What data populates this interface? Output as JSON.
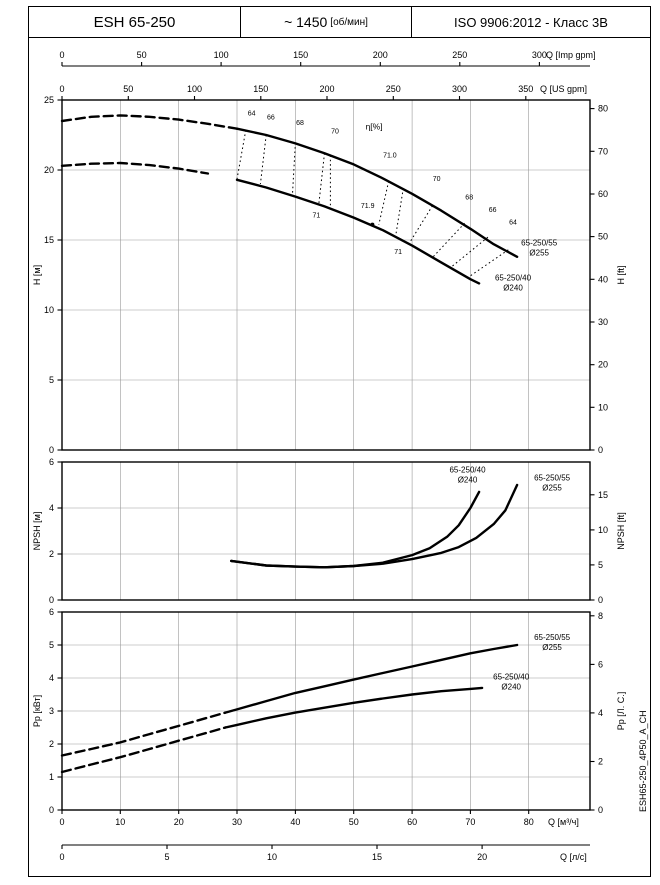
{
  "header": {
    "model": "ESH 65-250",
    "speed": "~ 1450",
    "speed_unit": "[об/мин]",
    "standard": "ISO 9906:2012 - Класс 3В"
  },
  "side_label": "ESH65-250_4P50_A_CH",
  "chart_data": {
    "type": "line",
    "flow_unit": "м³/ч",
    "flow_axes": [
      {
        "id": "imp-gpm",
        "label": "Q [Imp gpm]",
        "ticks": [
          0,
          50,
          100,
          150,
          200,
          250,
          300
        ],
        "to_m3h": 0.27276,
        "position": "top-outer"
      },
      {
        "id": "us-gpm",
        "label": "Q [US gpm]",
        "ticks": [
          0,
          50,
          100,
          150,
          200,
          250,
          300,
          350
        ],
        "to_m3h": 0.22712,
        "position": "top-inner"
      },
      {
        "id": "m3h",
        "label": "Q [м³/ч]",
        "ticks": [
          0,
          10,
          20,
          30,
          40,
          50,
          60,
          70,
          80
        ],
        "to_m3h": 1,
        "position": "bottom-inner"
      },
      {
        "id": "ls",
        "label": "Q [л/с]",
        "ticks": [
          0,
          5,
          10,
          15,
          20
        ],
        "to_m3h": 3.6,
        "position": "bottom-outer"
      }
    ],
    "grid_x_m3h": [
      10,
      20,
      30,
      40,
      50,
      60,
      70,
      80
    ],
    "plots": [
      {
        "id": "head",
        "left_axis": {
          "label": "H [м]",
          "min": 0,
          "max": 25,
          "ticks": [
            0,
            5,
            10,
            15,
            20,
            25
          ]
        },
        "right_axis": {
          "label": "H [ft]",
          "ticks": [
            0,
            10,
            20,
            30,
            40,
            50,
            60,
            70,
            80
          ],
          "to_left": 0.3048
        },
        "grid_y": [
          5,
          10,
          15,
          20
        ],
        "curves": [
          {
            "name": "65-250/55",
            "size": "Ø255",
            "dash_split": 30,
            "points": [
              [
                0,
                23.5
              ],
              [
                5,
                23.8
              ],
              [
                10,
                23.9
              ],
              [
                15,
                23.8
              ],
              [
                20,
                23.6
              ],
              [
                25,
                23.3
              ],
              [
                30,
                22.95
              ],
              [
                35,
                22.5
              ],
              [
                40,
                21.9
              ],
              [
                45,
                21.2
              ],
              [
                50,
                20.4
              ],
              [
                55,
                19.4
              ],
              [
                60,
                18.3
              ],
              [
                65,
                17.1
              ],
              [
                70,
                15.8
              ],
              [
                74,
                14.7
              ],
              [
                78,
                13.8
              ]
            ],
            "label_lines": [
              "65-250/55",
              "Ø255"
            ],
            "label_pos": [
              81.8,
              14.6
            ]
          },
          {
            "name": "65-250/40",
            "size": "Ø240",
            "dash_split": 28,
            "points": [
              [
                0,
                20.3
              ],
              [
                5,
                20.45
              ],
              [
                10,
                20.5
              ],
              [
                15,
                20.35
              ],
              [
                20,
                20.1
              ],
              [
                25,
                19.75
              ],
              [
                30,
                19.3
              ],
              [
                35,
                18.75
              ],
              [
                40,
                18.1
              ],
              [
                45,
                17.4
              ],
              [
                50,
                16.6
              ],
              [
                55,
                15.7
              ],
              [
                60,
                14.6
              ],
              [
                65,
                13.4
              ],
              [
                70,
                12.2
              ],
              [
                71.5,
                11.9
              ]
            ],
            "label_lines": [
              "65-250/40",
              "Ø240"
            ],
            "label_pos": [
              77.3,
              12.1
            ]
          }
        ],
        "efficiency": {
          "title": "η[%]",
          "title_pos": [
            53.5,
            22.9
          ],
          "bep_marker": [
            53.2,
            16.1
          ],
          "lines": [
            {
              "label": "64",
              "label_pos": [
                32.5,
                23.9
              ],
              "seg": [
                [
                  31.5,
                  22.85
                ],
                [
                  30,
                  19.35
                ]
              ]
            },
            {
              "label": "66",
              "label_pos": [
                35.8,
                23.6
              ],
              "seg": [
                [
                  35,
                  22.5
                ],
                [
                  34,
                  19.0
                ]
              ]
            },
            {
              "label": "68",
              "label_pos": [
                40.8,
                23.2
              ],
              "seg": [
                [
                  40,
                  21.95
                ],
                [
                  39.5,
                  18.3
                ]
              ]
            },
            {
              "label": "70",
              "label_pos": [
                46.8,
                22.6
              ],
              "seg": [
                [
                  46,
                  21.05
                ],
                [
                  46,
                  17.35
                ]
              ]
            },
            {
              "label": "71.0",
              "label_pos": [
                56.2,
                20.9
              ],
              "seg": [
                [
                  56,
                  19.2
                ],
                [
                  54.3,
                  16.1
                ]
              ]
            },
            {
              "label": "71",
              "label_pos": [
                43.6,
                16.6
              ],
              "seg": [
                [
                  45,
                  21.2
                ],
                [
                  44,
                  17.5
                ]
              ]
            },
            {
              "label": "71.9",
              "label_pos": [
                52.4,
                17.3
              ],
              "seg": []
            },
            {
              "label": "71",
              "label_pos": [
                57.6,
                14.0
              ],
              "seg": [
                [
                  58.5,
                  18.7
                ],
                [
                  57.2,
                  15.3
                ]
              ]
            },
            {
              "label": "70",
              "label_pos": [
                64.2,
                19.2
              ],
              "seg": [
                [
                  63.5,
                  17.45
                ],
                [
                  59.5,
                  14.75
                ]
              ]
            },
            {
              "label": "68",
              "label_pos": [
                69.8,
                17.9
              ],
              "seg": [
                [
                  69,
                  16.2
                ],
                [
                  63.5,
                  13.75
                ]
              ]
            },
            {
              "label": "66",
              "label_pos": [
                73.8,
                17.0
              ],
              "seg": [
                [
                  73,
                  15.2
                ],
                [
                  66.5,
                  13.0
                ]
              ]
            },
            {
              "label": "64",
              "label_pos": [
                77.3,
                16.1
              ],
              "seg": [
                [
                  76.5,
                  14.3
                ],
                [
                  69.5,
                  12.3
                ]
              ]
            }
          ]
        }
      },
      {
        "id": "npsh",
        "left_axis": {
          "label": "NPSH [м]",
          "min": 0,
          "max": 6,
          "ticks": [
            0,
            2,
            4,
            6
          ]
        },
        "right_axis": {
          "label": "NPSH [ft]",
          "ticks": [
            0,
            5,
            10,
            15
          ],
          "to_left": 0.3048
        },
        "grid_y": [
          2,
          4
        ],
        "curves": [
          {
            "name": "65-250/55",
            "size": "Ø255",
            "dash_split": 0,
            "points": [
              [
                29,
                1.7
              ],
              [
                35,
                1.5
              ],
              [
                40,
                1.45
              ],
              [
                45,
                1.42
              ],
              [
                50,
                1.48
              ],
              [
                55,
                1.58
              ],
              [
                60,
                1.78
              ],
              [
                65,
                2.05
              ],
              [
                68,
                2.3
              ],
              [
                71,
                2.7
              ],
              [
                74,
                3.3
              ],
              [
                76,
                3.9
              ],
              [
                78,
                5.0
              ]
            ],
            "label_lines": [
              "65-250/55",
              "Ø255"
            ],
            "label_pos": [
              84,
              5.2
            ]
          },
          {
            "name": "65-250/40",
            "size": "Ø240",
            "dash_split": 0,
            "points": [
              [
                29,
                1.7
              ],
              [
                35,
                1.5
              ],
              [
                40,
                1.45
              ],
              [
                45,
                1.42
              ],
              [
                50,
                1.48
              ],
              [
                55,
                1.62
              ],
              [
                60,
                1.95
              ],
              [
                63,
                2.25
              ],
              [
                66,
                2.75
              ],
              [
                68,
                3.25
              ],
              [
                70,
                4.0
              ],
              [
                71.5,
                4.7
              ]
            ],
            "label_lines": [
              "65-250/40",
              "Ø240"
            ],
            "label_pos": [
              69.5,
              5.55
            ]
          }
        ]
      },
      {
        "id": "power",
        "left_axis": {
          "label": "Pp [кВт]",
          "min": 0,
          "max": 6,
          "ticks": [
            0,
            1,
            2,
            3,
            4,
            5,
            6
          ]
        },
        "right_axis": {
          "label": "Pp [Л. С.]",
          "ticks": [
            0,
            2,
            4,
            6,
            8
          ],
          "to_left": 0.7355
        },
        "grid_y": [
          1,
          2,
          3,
          4,
          5
        ],
        "curves": [
          {
            "name": "65-250/55",
            "size": "Ø255",
            "dash_split": 28,
            "points": [
              [
                0,
                1.65
              ],
              [
                5,
                1.85
              ],
              [
                10,
                2.05
              ],
              [
                15,
                2.3
              ],
              [
                20,
                2.55
              ],
              [
                25,
                2.8
              ],
              [
                28,
                2.95
              ],
              [
                30,
                3.05
              ],
              [
                35,
                3.3
              ],
              [
                40,
                3.55
              ],
              [
                45,
                3.75
              ],
              [
                50,
                3.95
              ],
              [
                55,
                4.15
              ],
              [
                60,
                4.35
              ],
              [
                65,
                4.55
              ],
              [
                70,
                4.75
              ],
              [
                74,
                4.88
              ],
              [
                78,
                5.0
              ]
            ],
            "label_lines": [
              "65-250/55",
              "Ø255"
            ],
            "label_pos": [
              84,
              5.15
            ]
          },
          {
            "name": "65-250/40",
            "size": "Ø240",
            "dash_split": 28,
            "points": [
              [
                0,
                1.15
              ],
              [
                5,
                1.38
              ],
              [
                10,
                1.6
              ],
              [
                15,
                1.85
              ],
              [
                20,
                2.1
              ],
              [
                25,
                2.35
              ],
              [
                28,
                2.5
              ],
              [
                30,
                2.58
              ],
              [
                35,
                2.78
              ],
              [
                40,
                2.95
              ],
              [
                45,
                3.1
              ],
              [
                50,
                3.25
              ],
              [
                55,
                3.38
              ],
              [
                60,
                3.5
              ],
              [
                65,
                3.6
              ],
              [
                70,
                3.67
              ],
              [
                72,
                3.7
              ]
            ],
            "label_lines": [
              "65-250/40",
              "Ø240"
            ],
            "label_pos": [
              77,
              3.95
            ]
          }
        ]
      }
    ]
  }
}
